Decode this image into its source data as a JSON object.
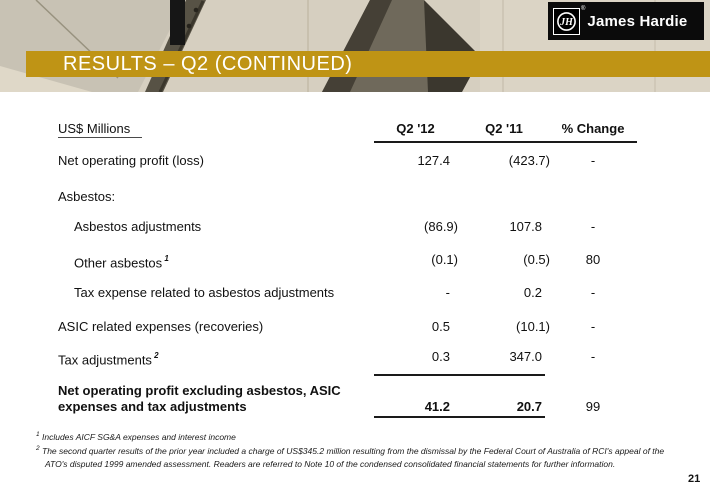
{
  "slide": {
    "logo": {
      "brand": "James Hardie",
      "emblem": "JH",
      "registered": "®"
    },
    "title": "RESULTS – Q2 (CONTINUED)",
    "page_number": "21"
  },
  "table": {
    "unit_label": "US$ Millions",
    "columns": [
      "Q2 '12",
      "Q2 '11",
      "% Change"
    ],
    "rows": [
      {
        "label": "Net operating profit (loss)",
        "q12": "127.4",
        "q11": "(423.7)",
        "pct": "-",
        "indent": 0
      },
      {
        "label": "Asbestos:",
        "q12": "",
        "q11": "",
        "pct": "",
        "indent": 0
      },
      {
        "label": "Asbestos adjustments",
        "q12": "(86.9)",
        "q11": "107.8",
        "pct": "-",
        "indent": 1
      },
      {
        "label": "Other asbestos",
        "sup": "1",
        "q12": "(0.1)",
        "q11": "(0.5)",
        "pct": "80",
        "indent": 1
      },
      {
        "label": "Tax expense related to asbestos adjustments",
        "q12": "-",
        "q11": "0.2",
        "pct": "-",
        "indent": 1
      },
      {
        "label": "ASIC related expenses (recoveries)",
        "q12": "0.5",
        "q11": "(10.1)",
        "pct": "-",
        "indent": 0
      },
      {
        "label": "Tax adjustments",
        "sup": "2",
        "q12": "0.3",
        "q11": "347.0",
        "pct": "-",
        "indent": 0
      }
    ],
    "total_row": {
      "label": "Net operating profit excluding asbestos, ASIC expenses and tax adjustments",
      "q12": "41.2",
      "q11": "20.7",
      "pct": "99"
    }
  },
  "footnotes": [
    {
      "sup": "1",
      "text": "Includes AICF SG&A expenses and interest income"
    },
    {
      "sup": "2",
      "text": "The second quarter results of the prior year included a charge of US$345.2 million resulting from the dismissal by the Federal Court of Australia of RCI's appeal of the ATO's disputed 1999 amended assessment. Readers are referred to Note 10 of the condensed consolidated  financial statements for further information."
    }
  ],
  "colors": {
    "banner_gold": "#BF9415",
    "logo_background": "#0B0B0B",
    "text": "#111111",
    "photo_beige": "#D6CFC0"
  }
}
